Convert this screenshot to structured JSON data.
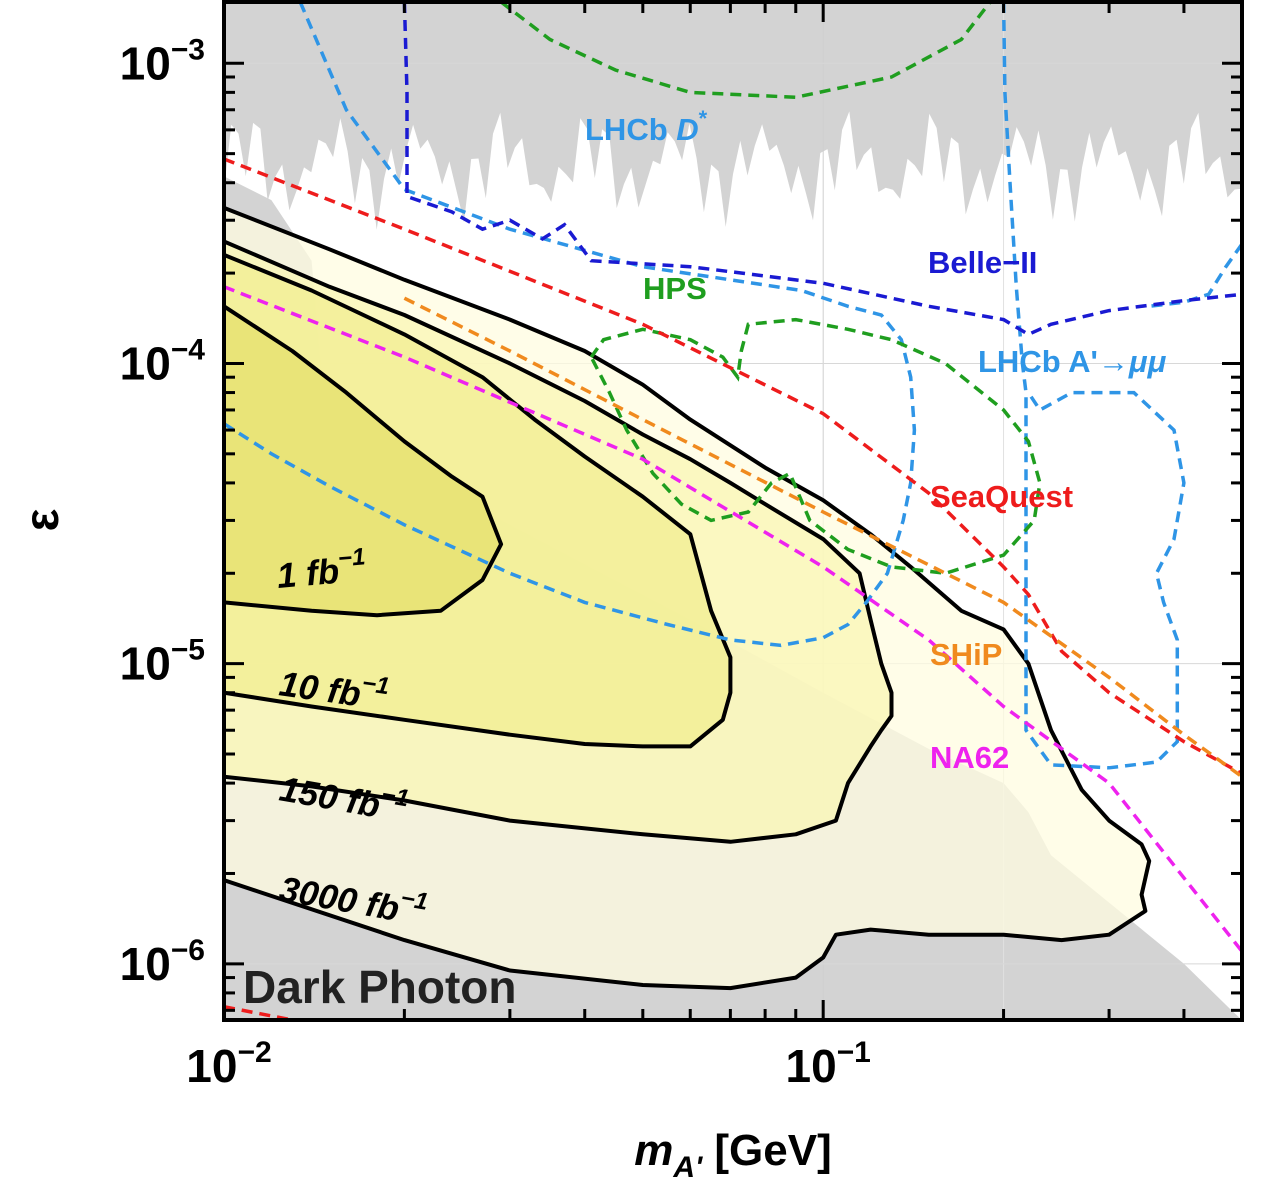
{
  "chart_data": {
    "type": "line",
    "title": "",
    "xlabel": {
      "main": "m",
      "sub": "A'",
      "unit": "[GeV]"
    },
    "ylabel": "ε",
    "xscale": "log",
    "yscale": "log",
    "xlim": [
      0.01,
      0.5
    ],
    "ylim": [
      6.5e-07,
      0.0016
    ],
    "x_ticks": [
      {
        "mant": "10",
        "exp": "−2"
      },
      {
        "mant": "10",
        "exp": "−1"
      }
    ],
    "y_ticks": [
      {
        "mant": "10",
        "exp": "−3",
        "v": 0.001
      },
      {
        "mant": "10",
        "exp": "−4",
        "v": 0.0001
      },
      {
        "mant": "10",
        "exp": "−5",
        "v": 1e-05
      },
      {
        "mant": "10",
        "exp": "−6",
        "v": 1e-06
      }
    ],
    "grid": true,
    "watermark": "Dark Photon",
    "colors": {
      "excluded": "#d3d3d3",
      "lhcb_dstar": "#2f95e6",
      "belle2": "#1a1ad2",
      "hps": "#1f9e1f",
      "seaquest": "#ee1c1c",
      "ship": "#f08a1e",
      "na62": "#ee22ee",
      "fill_1": "#e6e06c",
      "fill_10": "#f2ee90",
      "fill_150": "#faf6b4",
      "fill_3000": "#fffce0"
    },
    "projections": [
      {
        "name": "LHCb D*",
        "label": {
          "text": "LHCb ",
          "italic": "D",
          "sup": "*"
        },
        "color_key": "lhcb_dstar",
        "points": [
          [
            0.0134,
            0.0016
          ],
          [
            0.016,
            0.0007
          ],
          [
            0.02,
            0.00038
          ],
          [
            0.03,
            0.00028
          ],
          [
            0.05,
            0.00021
          ],
          [
            0.07,
            0.00019
          ],
          [
            0.092,
            0.000175
          ],
          [
            0.11,
            0.000155
          ],
          [
            0.125,
            0.000145
          ],
          [
            0.135,
            0.00012
          ],
          [
            0.14,
            9e-05
          ],
          [
            0.142,
            6e-05
          ],
          [
            0.14,
            4e-05
          ],
          [
            0.136,
            3e-05
          ],
          [
            0.128,
            2e-05
          ],
          [
            0.118,
            1.6e-05
          ],
          [
            0.11,
            1.35e-05
          ],
          [
            0.1,
            1.22e-05
          ],
          [
            0.085,
            1.15e-05
          ],
          [
            0.07,
            1.2e-05
          ],
          [
            0.055,
            1.35e-05
          ],
          [
            0.04,
            1.6e-05
          ],
          [
            0.03,
            2e-05
          ],
          [
            0.02,
            2.9e-05
          ],
          [
            0.015,
            3.9e-05
          ],
          [
            0.012,
            5e-05
          ],
          [
            0.01,
            6.3e-05
          ]
        ]
      },
      {
        "name": "LHCb A'→μμ",
        "label": {
          "text": "LHCb A'→",
          "italic": "μμ",
          "sup": ""
        },
        "color_key": "lhcb_dstar",
        "points": [
          [
            0.2,
            0.0016
          ],
          [
            0.201,
            0.0008
          ],
          [
            0.205,
            0.0004
          ],
          [
            0.21,
            0.00018
          ],
          [
            0.215,
            0.0001
          ],
          [
            0.218,
            8e-05
          ],
          [
            0.218,
            6e-05
          ],
          [
            0.218,
            3e-05
          ],
          [
            0.218,
            1.5e-05
          ],
          [
            0.218,
            8e-06
          ],
          [
            0.218,
            6e-06
          ],
          [
            0.24,
            4.6e-06
          ],
          [
            0.3,
            4.5e-06
          ],
          [
            0.36,
            4.7e-06
          ],
          [
            0.39,
            5.5e-06
          ],
          [
            0.39,
            8e-06
          ],
          [
            0.39,
            1.2e-05
          ],
          [
            0.37,
            1.6e-05
          ],
          [
            0.36,
            2e-05
          ],
          [
            0.385,
            2.6e-05
          ],
          [
            0.4,
            4e-05
          ],
          [
            0.385,
            6e-05
          ],
          [
            0.33,
            8e-05
          ],
          [
            0.26,
            8e-05
          ],
          [
            0.23,
            7e-05
          ],
          [
            0.22,
            8e-05
          ]
        ],
        "branch": [
          [
            0.5,
            0.00025
          ],
          [
            0.47,
            0.00021
          ],
          [
            0.44,
            0.00017
          ],
          [
            0.4,
            0.00016
          ],
          [
            0.35,
            0.000155
          ]
        ]
      },
      {
        "name": "Belle-II",
        "label": {
          "text": "Belle−II",
          "italic": "",
          "sup": ""
        },
        "color_key": "belle2",
        "points": [
          [
            0.02,
            0.0016
          ],
          [
            0.0202,
            0.0008
          ],
          [
            0.0202,
            0.00036
          ],
          [
            0.024,
            0.00032
          ],
          [
            0.027,
            0.00028
          ],
          [
            0.03,
            0.0003
          ],
          [
            0.034,
            0.00026
          ],
          [
            0.037,
            0.00029
          ],
          [
            0.041,
            0.00022
          ],
          [
            0.06,
            0.00021
          ],
          [
            0.1,
            0.000185
          ],
          [
            0.15,
            0.000155
          ],
          [
            0.2,
            0.00014
          ],
          [
            0.22,
            0.000125
          ],
          [
            0.24,
            0.000135
          ],
          [
            0.3,
            0.00015
          ],
          [
            0.4,
            0.000162
          ],
          [
            0.5,
            0.00017
          ]
        ]
      },
      {
        "name": "HPS",
        "label": {
          "text": "HPS",
          "italic": "",
          "sup": ""
        },
        "color_key": "hps",
        "points": [
          [
            0.029,
            0.0016
          ],
          [
            0.035,
            0.0012
          ],
          [
            0.045,
            0.00095
          ],
          [
            0.06,
            0.0008
          ],
          [
            0.09,
            0.00077
          ],
          [
            0.13,
            0.0009
          ],
          [
            0.17,
            0.0012
          ],
          [
            0.19,
            0.0016
          ]
        ],
        "points2": [
          [
            0.041,
            0.000105
          ],
          [
            0.043,
            0.00012
          ],
          [
            0.05,
            0.00013
          ],
          [
            0.06,
            0.00012
          ],
          [
            0.068,
            0.000105
          ],
          [
            0.072,
            9e-05
          ],
          [
            0.073,
            0.00011
          ],
          [
            0.075,
            0.000135
          ],
          [
            0.09,
            0.00014
          ],
          [
            0.11,
            0.00013
          ],
          [
            0.13,
            0.00012
          ],
          [
            0.16,
            0.0001
          ],
          [
            0.2,
            7e-05
          ],
          [
            0.22,
            5.5e-05
          ],
          [
            0.23,
            4e-05
          ],
          [
            0.225,
            3e-05
          ],
          [
            0.2,
            2.3e-05
          ],
          [
            0.16,
            2e-05
          ],
          [
            0.13,
            2.1e-05
          ],
          [
            0.11,
            2.4e-05
          ],
          [
            0.095,
            3e-05
          ],
          [
            0.088,
            4.3e-05
          ],
          [
            0.082,
            4e-05
          ],
          [
            0.075,
            3.2e-05
          ],
          [
            0.065,
            3e-05
          ],
          [
            0.058,
            3.4e-05
          ],
          [
            0.052,
            4.3e-05
          ],
          [
            0.047,
            6e-05
          ],
          [
            0.044,
            8e-05
          ],
          [
            0.041,
            0.000105
          ]
        ]
      },
      {
        "name": "SeaQuest",
        "label": {
          "text": "SeaQuest",
          "italic": "",
          "sup": ""
        },
        "color_key": "seaquest",
        "points": [
          [
            0.01,
            0.00048
          ],
          [
            0.02,
            0.00028
          ],
          [
            0.05,
            0.000135
          ],
          [
            0.1,
            6.8e-05
          ],
          [
            0.15,
            3.7e-05
          ],
          [
            0.2,
            2.1e-05
          ],
          [
            0.22,
            1.7e-05
          ],
          [
            0.25,
            1.1e-05
          ],
          [
            0.3,
            8e-06
          ],
          [
            0.4,
            5.5e-06
          ],
          [
            0.5,
            4.3e-06
          ]
        ],
        "points2": [
          [
            0.01,
            7.2e-07
          ],
          [
            0.013,
            6.5e-07
          ]
        ]
      },
      {
        "name": "SHiP",
        "label": {
          "text": "SHiP",
          "italic": "",
          "sup": ""
        },
        "color_key": "ship",
        "points": [
          [
            0.02,
            0.000165
          ],
          [
            0.03,
            0.00011
          ],
          [
            0.05,
            6.5e-05
          ],
          [
            0.1,
            3.2e-05
          ],
          [
            0.2,
            1.6e-05
          ],
          [
            0.3,
            9e-06
          ],
          [
            0.4,
            5.8e-06
          ],
          [
            0.5,
            4.2e-06
          ]
        ]
      },
      {
        "name": "NA62",
        "label": {
          "text": "NA62",
          "italic": "",
          "sup": ""
        },
        "color_key": "na62",
        "points": [
          [
            0.01,
            0.00018
          ],
          [
            0.02,
            0.000105
          ],
          [
            0.05,
            4.8e-05
          ],
          [
            0.1,
            2.1e-05
          ],
          [
            0.15,
            1.2e-05
          ],
          [
            0.2,
            7.2e-06
          ],
          [
            0.3,
            4e-06
          ],
          [
            0.5,
            1.1e-06
          ]
        ]
      }
    ],
    "contours": [
      {
        "name": "1 fb−1",
        "label": {
          "text": "1 fb",
          "sup": "−1"
        },
        "fill_key": "fill_1",
        "points": [
          [
            0.01,
            0.000155
          ],
          [
            0.013,
            0.00011
          ],
          [
            0.016,
            8e-05
          ],
          [
            0.02,
            5.5e-05
          ],
          [
            0.024,
            4.2e-05
          ],
          [
            0.027,
            3.6e-05
          ],
          [
            0.029,
            2.5e-05
          ],
          [
            0.027,
            1.9e-05
          ],
          [
            0.023,
            1.5e-05
          ],
          [
            0.018,
            1.45e-05
          ],
          [
            0.014,
            1.5e-05
          ],
          [
            0.01,
            1.6e-05
          ]
        ]
      },
      {
        "name": "10 fb−1",
        "label": {
          "text": "10 fb",
          "sup": "−1"
        },
        "fill_key": "fill_10",
        "points": [
          [
            0.01,
            0.00023
          ],
          [
            0.014,
            0.000175
          ],
          [
            0.02,
            0.000125
          ],
          [
            0.027,
            9e-05
          ],
          [
            0.033,
            6.5e-05
          ],
          [
            0.04,
            4.9e-05
          ],
          [
            0.05,
            3.6e-05
          ],
          [
            0.06,
            2.7e-05
          ],
          [
            0.065,
            1.5e-05
          ],
          [
            0.07,
            1.05e-05
          ],
          [
            0.07,
            8e-06
          ],
          [
            0.068,
            6.5e-06
          ],
          [
            0.06,
            5.3e-06
          ],
          [
            0.05,
            5.3e-06
          ],
          [
            0.04,
            5.4e-06
          ],
          [
            0.03,
            5.8e-06
          ],
          [
            0.02,
            6.5e-06
          ],
          [
            0.014,
            7.2e-06
          ],
          [
            0.01,
            8e-06
          ]
        ]
      },
      {
        "name": "150 fb−1",
        "label": {
          "text": "150 fb",
          "sup": "−1"
        },
        "fill_key": "fill_150",
        "points": [
          [
            0.01,
            0.000255
          ],
          [
            0.015,
            0.00018
          ],
          [
            0.02,
            0.000145
          ],
          [
            0.03,
            0.0001
          ],
          [
            0.04,
            7.5e-05
          ],
          [
            0.05,
            5.8e-05
          ],
          [
            0.06,
            4.8e-05
          ],
          [
            0.07,
            4e-05
          ],
          [
            0.08,
            3.4e-05
          ],
          [
            0.1,
            2.6e-05
          ],
          [
            0.115,
            2e-05
          ],
          [
            0.12,
            1.4e-05
          ],
          [
            0.125,
            1e-05
          ],
          [
            0.13,
            8e-06
          ],
          [
            0.13,
            6.7e-06
          ],
          [
            0.125,
            6e-06
          ],
          [
            0.12,
            5.3e-06
          ],
          [
            0.11,
            4e-06
          ],
          [
            0.105,
            3e-06
          ],
          [
            0.09,
            2.7e-06
          ],
          [
            0.07,
            2.55e-06
          ],
          [
            0.05,
            2.7e-06
          ],
          [
            0.03,
            3e-06
          ],
          [
            0.02,
            3.5e-06
          ],
          [
            0.014,
            3.9e-06
          ],
          [
            0.01,
            4.2e-06
          ]
        ]
      },
      {
        "name": "3000 fb−1",
        "label": {
          "text": "3000 fb",
          "sup": "−1"
        },
        "fill_key": "fill_3000",
        "points": [
          [
            0.01,
            0.00033
          ],
          [
            0.015,
            0.00024
          ],
          [
            0.02,
            0.00019
          ],
          [
            0.03,
            0.00014
          ],
          [
            0.04,
            0.00011
          ],
          [
            0.05,
            8.5e-05
          ],
          [
            0.06,
            6.5e-05
          ],
          [
            0.08,
            4.5e-05
          ],
          [
            0.1,
            3.5e-05
          ],
          [
            0.12,
            2.7e-05
          ],
          [
            0.14,
            2.1e-05
          ],
          [
            0.17,
            1.5e-05
          ],
          [
            0.2,
            1.3e-05
          ],
          [
            0.22,
            1e-05
          ],
          [
            0.24,
            6e-06
          ],
          [
            0.27,
            3.8e-06
          ],
          [
            0.3,
            3e-06
          ],
          [
            0.34,
            2.5e-06
          ],
          [
            0.35,
            2.2e-06
          ],
          [
            0.34,
            1.7e-06
          ],
          [
            0.345,
            1.5e-06
          ],
          [
            0.3,
            1.25e-06
          ],
          [
            0.25,
            1.2e-06
          ],
          [
            0.2,
            1.25e-06
          ],
          [
            0.15,
            1.25e-06
          ],
          [
            0.12,
            1.3e-06
          ],
          [
            0.105,
            1.25e-06
          ],
          [
            0.1,
            1.05e-06
          ],
          [
            0.09,
            9e-07
          ],
          [
            0.07,
            8.3e-07
          ],
          [
            0.05,
            8.5e-07
          ],
          [
            0.03,
            9.5e-07
          ],
          [
            0.02,
            1.2e-06
          ],
          [
            0.01,
            1.9e-06
          ]
        ]
      }
    ]
  }
}
